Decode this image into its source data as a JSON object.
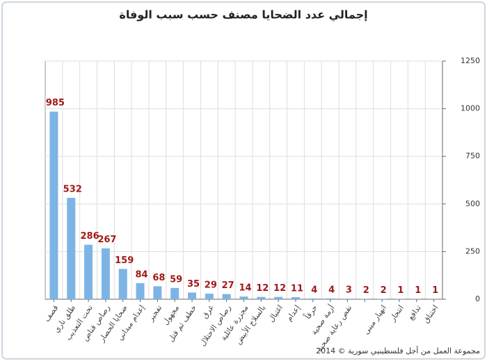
{
  "chart_data": {
    "type": "bar",
    "title": "إجمالي عدد الضحايا مصنف حسب سبب الوفاة",
    "source": "مجموعة العمل من أجل فلسطينيي سورية © 2014",
    "categories": [
      "قصف",
      "طلق ناري",
      "تحت التعذيب",
      "رصاص قناص",
      "ضحايا الحصار",
      "إعدام ميداني",
      "تفجير",
      "مجهول",
      "خطف ثم قتل",
      "غرق",
      "رصاص الاحتلال",
      "مجزرة عائلية",
      "بالسلاح الأبيض",
      "اغتيال",
      "إعدام",
      "حرقاً",
      "أزمة صحية",
      "نقص رعاية صحية",
      null,
      "انهيار مبنى",
      "انتحار",
      "تدافع",
      "اختناق"
    ],
    "values": [
      985,
      532,
      286,
      267,
      159,
      84,
      68,
      59,
      35,
      29,
      27,
      14,
      12,
      12,
      11,
      4,
      4,
      3,
      2,
      2,
      1,
      1,
      1
    ],
    "color": "#7db4e6",
    "label_color": "#a01818",
    "ylim": [
      0,
      1250
    ],
    "yticks": [
      0,
      250,
      500,
      750,
      1000,
      1250
    ],
    "grid": true,
    "y_axis_side": "right"
  }
}
